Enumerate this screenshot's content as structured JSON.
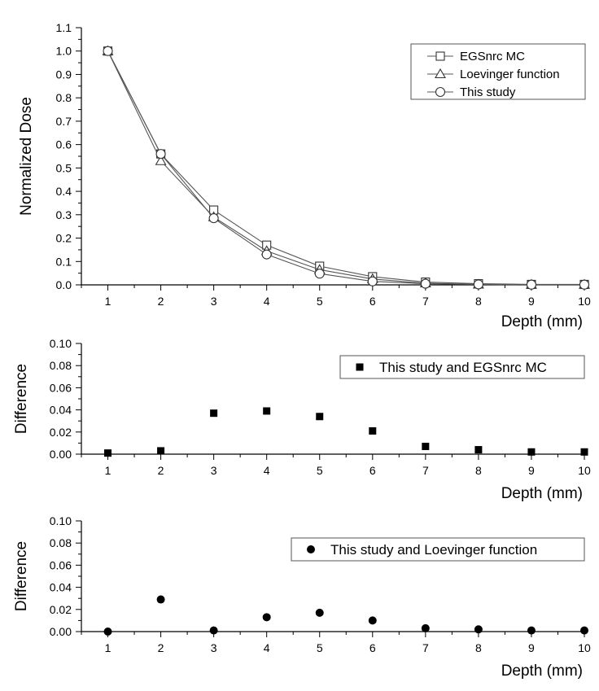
{
  "chart_data": [
    {
      "type": "line",
      "panel": "top",
      "title": "",
      "xlabel": "Depth (mm)",
      "ylabel": "Normalized Dose",
      "xlim": [
        0.5,
        10
      ],
      "ylim": [
        0,
        1.1
      ],
      "x_ticks": [
        1,
        2,
        3,
        4,
        5,
        6,
        7,
        8,
        9,
        10
      ],
      "y_ticks": [
        0.0,
        0.1,
        0.2,
        0.3,
        0.4,
        0.5,
        0.6,
        0.7,
        0.8,
        0.9,
        1.0,
        1.1
      ],
      "y_tick_labels": [
        "0.0",
        "0.1",
        "0.2",
        "0.3",
        "0.4",
        "0.5",
        "0.6",
        "0.7",
        "0.8",
        "0.9",
        "1.0",
        "1.1"
      ],
      "grid": false,
      "legend_position": "top-right",
      "x": [
        1,
        2,
        3,
        4,
        5,
        6,
        7,
        8,
        9,
        10
      ],
      "series": [
        {
          "name": "EGSnrc MC",
          "marker": "square",
          "values": [
            1.0,
            0.56,
            0.32,
            0.17,
            0.08,
            0.035,
            0.012,
            0.005,
            0.002,
            0.002
          ]
        },
        {
          "name": "Loevinger function",
          "marker": "triangle",
          "values": [
            1.0,
            0.53,
            0.29,
            0.145,
            0.065,
            0.025,
            0.007,
            0.002,
            0.001,
            0.001
          ]
        },
        {
          "name": "This study",
          "marker": "circle",
          "values": [
            1.0,
            0.56,
            0.285,
            0.13,
            0.048,
            0.015,
            0.005,
            0.002,
            0.001,
            0.001
          ]
        }
      ]
    },
    {
      "type": "scatter",
      "panel": "middle",
      "title": "",
      "xlabel": "Depth (mm)",
      "ylabel": "Difference",
      "xlim": [
        0.5,
        10
      ],
      "ylim": [
        0,
        0.1
      ],
      "x_ticks": [
        1,
        2,
        3,
        4,
        5,
        6,
        7,
        8,
        9,
        10
      ],
      "y_ticks": [
        0.0,
        0.02,
        0.04,
        0.06,
        0.08,
        0.1
      ],
      "y_tick_labels": [
        "0.00",
        "0.02",
        "0.04",
        "0.06",
        "0.08",
        "0.10"
      ],
      "grid": false,
      "legend_position": "top-right",
      "x": [
        1,
        2,
        3,
        4,
        5,
        6,
        7,
        8,
        9,
        10
      ],
      "series": [
        {
          "name": "This study and EGSnrc MC",
          "marker": "filled-square",
          "values": [
            0.001,
            0.003,
            0.037,
            0.039,
            0.034,
            0.021,
            0.007,
            0.004,
            0.002,
            0.002
          ]
        }
      ]
    },
    {
      "type": "scatter",
      "panel": "bottom",
      "title": "",
      "xlabel": "Depth (mm)",
      "ylabel": "Difference",
      "xlim": [
        0.5,
        10
      ],
      "ylim": [
        0,
        0.1
      ],
      "x_ticks": [
        1,
        2,
        3,
        4,
        5,
        6,
        7,
        8,
        9,
        10
      ],
      "y_ticks": [
        0.0,
        0.02,
        0.04,
        0.06,
        0.08,
        0.1
      ],
      "y_tick_labels": [
        "0.00",
        "0.02",
        "0.04",
        "0.06",
        "0.08",
        "0.10"
      ],
      "grid": false,
      "legend_position": "top-right",
      "x": [
        1,
        2,
        3,
        4,
        5,
        6,
        7,
        8,
        9,
        10
      ],
      "series": [
        {
          "name": "This study and Loevinger function",
          "marker": "filled-circle",
          "values": [
            0.0,
            0.029,
            0.001,
            0.013,
            0.017,
            0.01,
            0.003,
            0.002,
            0.001,
            0.001
          ]
        }
      ]
    }
  ]
}
